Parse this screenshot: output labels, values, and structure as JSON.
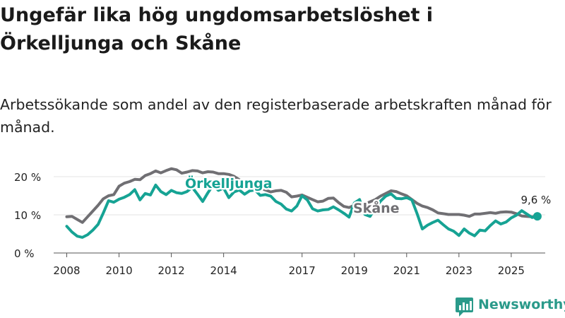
{
  "title": "Ungefär lika hög ungdomsarbetslöshet i Örkelljunga och Skåne",
  "subtitle": "Arbetssökande som andel av den registerbaserade arbetskraften månad för månad.",
  "logo_text": "Newsworthy",
  "colors": {
    "teal": "#16a394",
    "gray": "#706f73",
    "grid": "#e3e3e3",
    "axis": "#555555",
    "logo": "#2a9a8a"
  },
  "chart_data": {
    "type": "line",
    "title": "Ungefär lika hög ungdomsarbetslöshet i Örkelljunga och Skåne",
    "xlabel": "",
    "ylabel": "",
    "xlim": [
      2007.5,
      2026.3
    ],
    "ylim": [
      0,
      20
    ],
    "y_ticks": [
      0,
      10,
      20
    ],
    "y_tick_labels": [
      "0 %",
      "10 %",
      "20 %"
    ],
    "x_ticks": [
      2008,
      2010,
      2012,
      2014,
      2017,
      2019,
      2021,
      2023,
      2025
    ],
    "x_tick_labels": [
      "2008",
      "2010",
      "2012",
      "2014",
      "2017",
      "2019",
      "2021",
      "2023",
      "2025"
    ],
    "end_label": "9,6 %",
    "series": [
      {
        "name": "Skåne",
        "color": "#706f73",
        "points": [
          [
            2008.0,
            9.5
          ],
          [
            2008.2,
            9.6
          ],
          [
            2008.4,
            8.8
          ],
          [
            2008.6,
            8.0
          ],
          [
            2008.8,
            9.5
          ],
          [
            2009.0,
            11.0
          ],
          [
            2009.2,
            12.5
          ],
          [
            2009.4,
            14.2
          ],
          [
            2009.6,
            15.0
          ],
          [
            2009.8,
            15.3
          ],
          [
            2010.0,
            17.5
          ],
          [
            2010.2,
            18.3
          ],
          [
            2010.4,
            18.7
          ],
          [
            2010.6,
            19.3
          ],
          [
            2010.8,
            19.2
          ],
          [
            2011.0,
            20.3
          ],
          [
            2011.2,
            20.8
          ],
          [
            2011.4,
            21.5
          ],
          [
            2011.6,
            21.0
          ],
          [
            2011.8,
            21.6
          ],
          [
            2012.0,
            22.1
          ],
          [
            2012.2,
            21.8
          ],
          [
            2012.4,
            20.9
          ],
          [
            2012.6,
            21.2
          ],
          [
            2012.8,
            21.6
          ],
          [
            2013.0,
            21.5
          ],
          [
            2013.2,
            21.0
          ],
          [
            2013.4,
            21.3
          ],
          [
            2013.6,
            21.2
          ],
          [
            2013.8,
            20.8
          ],
          [
            2014.0,
            20.8
          ],
          [
            2014.2,
            20.6
          ],
          [
            2014.4,
            20.1
          ],
          [
            2014.6,
            19.2
          ],
          [
            2014.8,
            18.6
          ],
          [
            2015.0,
            18.1
          ],
          [
            2015.2,
            17.4
          ],
          [
            2015.4,
            17.0
          ],
          [
            2015.6,
            16.5
          ],
          [
            2015.8,
            16.0
          ],
          [
            2016.0,
            16.3
          ],
          [
            2016.2,
            16.4
          ],
          [
            2016.4,
            15.9
          ],
          [
            2016.6,
            14.7
          ],
          [
            2016.8,
            14.9
          ],
          [
            2017.0,
            15.2
          ],
          [
            2017.2,
            14.6
          ],
          [
            2017.4,
            14.0
          ],
          [
            2017.6,
            13.4
          ],
          [
            2017.8,
            13.6
          ],
          [
            2018.0,
            14.3
          ],
          [
            2018.2,
            14.4
          ],
          [
            2018.4,
            13.2
          ],
          [
            2018.6,
            12.2
          ],
          [
            2018.8,
            11.9
          ],
          [
            2019.0,
            12.5
          ],
          [
            2019.2,
            12.3
          ],
          [
            2019.4,
            12.8
          ],
          [
            2019.6,
            13.4
          ],
          [
            2019.8,
            14.0
          ],
          [
            2020.0,
            14.9
          ],
          [
            2020.2,
            15.6
          ],
          [
            2020.4,
            16.3
          ],
          [
            2020.6,
            16.1
          ],
          [
            2020.8,
            15.5
          ],
          [
            2021.0,
            15.0
          ],
          [
            2021.2,
            14.0
          ],
          [
            2021.4,
            13.0
          ],
          [
            2021.6,
            12.3
          ],
          [
            2021.8,
            11.9
          ],
          [
            2022.0,
            11.3
          ],
          [
            2022.2,
            10.5
          ],
          [
            2022.4,
            10.3
          ],
          [
            2022.6,
            10.1
          ],
          [
            2022.8,
            10.1
          ],
          [
            2023.0,
            10.1
          ],
          [
            2023.2,
            9.9
          ],
          [
            2023.4,
            9.6
          ],
          [
            2023.6,
            10.2
          ],
          [
            2023.8,
            10.2
          ],
          [
            2024.0,
            10.4
          ],
          [
            2024.2,
            10.6
          ],
          [
            2024.4,
            10.4
          ],
          [
            2024.6,
            10.7
          ],
          [
            2024.8,
            10.8
          ],
          [
            2025.0,
            10.7
          ],
          [
            2025.2,
            10.3
          ],
          [
            2025.4,
            9.7
          ],
          [
            2025.6,
            9.6
          ],
          [
            2025.8,
            9.5
          ],
          [
            2026.0,
            9.6
          ]
        ]
      },
      {
        "name": "Örkelljunga",
        "color": "#16a394",
        "points": [
          [
            2008.0,
            7.0
          ],
          [
            2008.2,
            5.5
          ],
          [
            2008.4,
            4.4
          ],
          [
            2008.6,
            4.1
          ],
          [
            2008.8,
            4.8
          ],
          [
            2009.0,
            6.0
          ],
          [
            2009.2,
            7.5
          ],
          [
            2009.4,
            10.5
          ],
          [
            2009.6,
            13.7
          ],
          [
            2009.8,
            13.3
          ],
          [
            2010.0,
            14.1
          ],
          [
            2010.2,
            14.6
          ],
          [
            2010.4,
            15.3
          ],
          [
            2010.6,
            16.6
          ],
          [
            2010.8,
            13.9
          ],
          [
            2011.0,
            15.6
          ],
          [
            2011.2,
            15.2
          ],
          [
            2011.4,
            17.8
          ],
          [
            2011.6,
            16.1
          ],
          [
            2011.8,
            15.3
          ],
          [
            2012.0,
            16.4
          ],
          [
            2012.2,
            15.8
          ],
          [
            2012.4,
            15.6
          ],
          [
            2012.6,
            16.1
          ],
          [
            2012.8,
            17.2
          ],
          [
            2013.0,
            15.4
          ],
          [
            2013.2,
            13.5
          ],
          [
            2013.4,
            15.8
          ],
          [
            2013.6,
            17.8
          ],
          [
            2013.8,
            16.4
          ],
          [
            2014.0,
            17.0
          ],
          [
            2014.2,
            14.5
          ],
          [
            2014.4,
            16.0
          ],
          [
            2014.6,
            16.5
          ],
          [
            2014.8,
            15.4
          ],
          [
            2015.0,
            16.3
          ],
          [
            2015.2,
            16.5
          ],
          [
            2015.4,
            15.1
          ],
          [
            2015.6,
            15.3
          ],
          [
            2015.8,
            14.9
          ],
          [
            2016.0,
            13.5
          ],
          [
            2016.2,
            12.8
          ],
          [
            2016.4,
            11.5
          ],
          [
            2016.6,
            11.0
          ],
          [
            2016.8,
            12.3
          ],
          [
            2017.0,
            15.0
          ],
          [
            2017.2,
            13.9
          ],
          [
            2017.4,
            11.6
          ],
          [
            2017.6,
            11.0
          ],
          [
            2017.8,
            11.3
          ],
          [
            2018.0,
            11.4
          ],
          [
            2018.2,
            12.1
          ],
          [
            2018.4,
            11.3
          ],
          [
            2018.6,
            10.4
          ],
          [
            2018.8,
            9.4
          ],
          [
            2019.0,
            13.1
          ],
          [
            2019.2,
            14.0
          ],
          [
            2019.4,
            10.1
          ],
          [
            2019.6,
            9.6
          ],
          [
            2019.8,
            11.8
          ],
          [
            2020.0,
            13.6
          ],
          [
            2020.2,
            14.9
          ],
          [
            2020.4,
            15.5
          ],
          [
            2020.6,
            14.3
          ],
          [
            2020.8,
            14.2
          ],
          [
            2021.0,
            14.5
          ],
          [
            2021.2,
            13.9
          ],
          [
            2021.4,
            10.3
          ],
          [
            2021.6,
            6.3
          ],
          [
            2021.8,
            7.3
          ],
          [
            2022.0,
            8.0
          ],
          [
            2022.2,
            8.6
          ],
          [
            2022.4,
            7.4
          ],
          [
            2022.6,
            6.3
          ],
          [
            2022.8,
            5.7
          ],
          [
            2023.0,
            4.6
          ],
          [
            2023.2,
            6.3
          ],
          [
            2023.4,
            5.2
          ],
          [
            2023.6,
            4.5
          ],
          [
            2023.8,
            6.0
          ],
          [
            2024.0,
            5.8
          ],
          [
            2024.2,
            7.2
          ],
          [
            2024.4,
            8.4
          ],
          [
            2024.6,
            7.6
          ],
          [
            2024.8,
            8.1
          ],
          [
            2025.0,
            9.2
          ],
          [
            2025.2,
            9.9
          ],
          [
            2025.4,
            11.1
          ],
          [
            2025.6,
            10.2
          ],
          [
            2025.8,
            9.3
          ],
          [
            2026.0,
            9.6
          ]
        ]
      }
    ]
  }
}
